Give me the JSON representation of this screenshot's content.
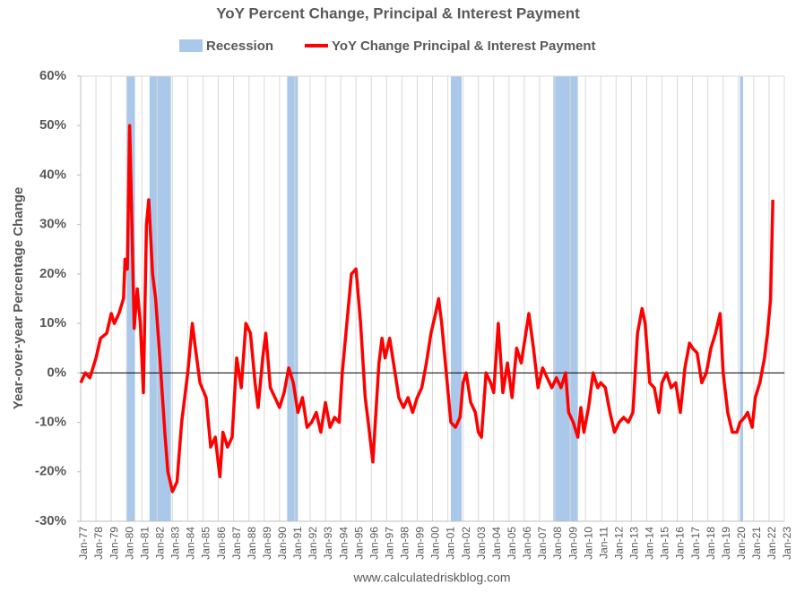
{
  "chart_data": {
    "type": "line",
    "title": "YoY Percent Change, Principal & Interest Payment",
    "ylabel": "Year-over-year Percentage Change",
    "source": "www.calculatedriskblog.com",
    "recession_name": "Recession",
    "recession_color": "#a9c8ea",
    "recessions": [
      {
        "start": 1980.0,
        "end": 1980.55
      },
      {
        "start": 1981.5,
        "end": 1982.9
      },
      {
        "start": 1990.5,
        "end": 1991.2
      },
      {
        "start": 2001.2,
        "end": 2001.9
      },
      {
        "start": 2007.9,
        "end": 2009.5
      },
      {
        "start": 2020.1,
        "end": 2020.3
      }
    ],
    "xlim": [
      1977,
      2023
    ],
    "xticks": [
      {
        "value": 1977,
        "label": "Jan-77"
      },
      {
        "value": 1978,
        "label": "Jan-78"
      },
      {
        "value": 1979,
        "label": "Jan-79"
      },
      {
        "value": 1980,
        "label": "Jan-80"
      },
      {
        "value": 1981,
        "label": "Jan-81"
      },
      {
        "value": 1982,
        "label": "Jan-82"
      },
      {
        "value": 1983,
        "label": "Jan-83"
      },
      {
        "value": 1984,
        "label": "Jan-84"
      },
      {
        "value": 1985,
        "label": "Jan-85"
      },
      {
        "value": 1986,
        "label": "Jan-86"
      },
      {
        "value": 1987,
        "label": "Jan-87"
      },
      {
        "value": 1988,
        "label": "Jan-88"
      },
      {
        "value": 1989,
        "label": "Jan-89"
      },
      {
        "value": 1990,
        "label": "Jan-90"
      },
      {
        "value": 1991,
        "label": "Jan-91"
      },
      {
        "value": 1992,
        "label": "Jan-92"
      },
      {
        "value": 1993,
        "label": "Jan-93"
      },
      {
        "value": 1994,
        "label": "Jan-94"
      },
      {
        "value": 1995,
        "label": "Jan-95"
      },
      {
        "value": 1996,
        "label": "Jan-96"
      },
      {
        "value": 1997,
        "label": "Jan-97"
      },
      {
        "value": 1998,
        "label": "Jan-98"
      },
      {
        "value": 1999,
        "label": "Jan-99"
      },
      {
        "value": 2000,
        "label": "Jan-00"
      },
      {
        "value": 2001,
        "label": "Jan-01"
      },
      {
        "value": 2002,
        "label": "Jan-02"
      },
      {
        "value": 2003,
        "label": "Jan-03"
      },
      {
        "value": 2004,
        "label": "Jan-04"
      },
      {
        "value": 2005,
        "label": "Jan-05"
      },
      {
        "value": 2006,
        "label": "Jan-06"
      },
      {
        "value": 2007,
        "label": "Jan-07"
      },
      {
        "value": 2008,
        "label": "Jan-08"
      },
      {
        "value": 2009,
        "label": "Jan-09"
      },
      {
        "value": 2010,
        "label": "Jan-10"
      },
      {
        "value": 2011,
        "label": "Jan-11"
      },
      {
        "value": 2012,
        "label": "Jan-12"
      },
      {
        "value": 2013,
        "label": "Jan-13"
      },
      {
        "value": 2014,
        "label": "Jan-14"
      },
      {
        "value": 2015,
        "label": "Jan-15"
      },
      {
        "value": 2016,
        "label": "Jan-16"
      },
      {
        "value": 2017,
        "label": "Jan-17"
      },
      {
        "value": 2018,
        "label": "Jan-18"
      },
      {
        "value": 2019,
        "label": "Jan-19"
      },
      {
        "value": 2020,
        "label": "Jan-20"
      },
      {
        "value": 2021,
        "label": "Jan-21"
      },
      {
        "value": 2022,
        "label": "Jan-22"
      },
      {
        "value": 2023,
        "label": "Jan-23"
      }
    ],
    "ylim": [
      -30,
      60
    ],
    "yticks": [
      {
        "value": -30,
        "label": "-30%"
      },
      {
        "value": -20,
        "label": "-20%"
      },
      {
        "value": -10,
        "label": "-10%"
      },
      {
        "value": 0,
        "label": "0%"
      },
      {
        "value": 10,
        "label": "10%"
      },
      {
        "value": 20,
        "label": "20%"
      },
      {
        "value": 30,
        "label": "30%"
      },
      {
        "value": 40,
        "label": "40%"
      },
      {
        "value": 50,
        "label": "50%"
      },
      {
        "value": 60,
        "label": "60%"
      }
    ],
    "grid": true,
    "series": [
      {
        "name": "YoY Change Principal & Interest Payment",
        "color": "#ff0000",
        "x": [
          1977.0,
          1977.3,
          1977.6,
          1978.0,
          1978.3,
          1978.7,
          1979.0,
          1979.2,
          1979.5,
          1979.8,
          1979.9,
          1980.05,
          1980.2,
          1980.35,
          1980.5,
          1980.7,
          1980.9,
          1981.1,
          1981.3,
          1981.45,
          1981.7,
          1981.9,
          1982.2,
          1982.5,
          1982.7,
          1983.0,
          1983.3,
          1983.6,
          1984.0,
          1984.3,
          1984.5,
          1984.8,
          1985.2,
          1985.5,
          1985.8,
          1986.1,
          1986.3,
          1986.6,
          1986.9,
          1987.2,
          1987.5,
          1987.8,
          1988.1,
          1988.4,
          1988.6,
          1988.9,
          1989.1,
          1989.4,
          1989.7,
          1990.0,
          1990.3,
          1990.6,
          1990.9,
          1991.2,
          1991.5,
          1991.8,
          1992.1,
          1992.4,
          1992.7,
          1993.0,
          1993.3,
          1993.6,
          1993.9,
          1994.1,
          1994.4,
          1994.7,
          1995.0,
          1995.3,
          1995.6,
          1995.8,
          1996.1,
          1996.3,
          1996.5,
          1996.7,
          1996.9,
          1997.2,
          1997.5,
          1997.8,
          1998.1,
          1998.4,
          1998.7,
          1999.0,
          1999.3,
          1999.6,
          1999.9,
          2000.2,
          2000.4,
          2000.6,
          2000.9,
          2001.2,
          2001.5,
          2001.8,
          2002.0,
          2002.2,
          2002.5,
          2002.8,
          2003.0,
          2003.2,
          2003.5,
          2003.8,
          2004.0,
          2004.3,
          2004.6,
          2004.9,
          2005.2,
          2005.5,
          2005.8,
          2006.0,
          2006.3,
          2006.6,
          2006.9,
          2007.2,
          2007.5,
          2007.8,
          2008.1,
          2008.4,
          2008.7,
          2008.9,
          2009.2,
          2009.5,
          2009.7,
          2009.9,
          2010.2,
          2010.5,
          2010.8,
          2011.0,
          2011.3,
          2011.6,
          2011.9,
          2012.2,
          2012.5,
          2012.8,
          2013.1,
          2013.4,
          2013.7,
          2013.9,
          2014.2,
          2014.5,
          2014.8,
          2015.0,
          2015.3,
          2015.6,
          2015.9,
          2016.2,
          2016.5,
          2016.8,
          2017.0,
          2017.3,
          2017.6,
          2017.9,
          2018.2,
          2018.5,
          2018.8,
          2019.0,
          2019.3,
          2019.6,
          2019.9,
          2020.1,
          2020.4,
          2020.6,
          2020.9,
          2021.1,
          2021.4,
          2021.7,
          2021.9,
          2022.1,
          2022.25
        ],
        "values": [
          -2,
          0,
          -1,
          3,
          7,
          8,
          12,
          10,
          12,
          15,
          23,
          21,
          50,
          30,
          9,
          17,
          10,
          -4,
          30,
          35,
          20,
          15,
          2,
          -12,
          -20,
          -24,
          -22,
          -10,
          0,
          10,
          5,
          -2,
          -5,
          -15,
          -13,
          -21,
          -12,
          -15,
          -13,
          3,
          -3,
          10,
          8,
          -2,
          -7,
          3,
          8,
          -3,
          -5,
          -7,
          -4,
          1,
          -2,
          -8,
          -5,
          -11,
          -10,
          -8,
          -12,
          -6,
          -11,
          -9,
          -10,
          0,
          10,
          20,
          21,
          10,
          -5,
          -10,
          -18,
          -8,
          2,
          7,
          3,
          7,
          1,
          -5,
          -7,
          -5,
          -8,
          -5,
          -3,
          2,
          8,
          12,
          15,
          10,
          0,
          -10,
          -11,
          -9,
          -2,
          0,
          -6,
          -8,
          -12,
          -13,
          0,
          -2,
          -4,
          10,
          -4,
          2,
          -5,
          5,
          2,
          6,
          12,
          5,
          -3,
          1,
          -1,
          -3,
          -1,
          -3,
          0,
          -8,
          -10,
          -13,
          -7,
          -12,
          -7,
          0,
          -3,
          -2,
          -3,
          -8,
          -12,
          -10,
          -9,
          -10,
          -8,
          8,
          13,
          10,
          -2,
          -3,
          -8,
          -2,
          0,
          -3,
          -2,
          -8,
          1,
          6,
          5,
          4,
          -2,
          0,
          5,
          8,
          12,
          0,
          -8,
          -12,
          -12,
          -10,
          -9,
          -8,
          -11,
          -5,
          -2,
          3,
          8,
          15,
          35
        ]
      }
    ]
  }
}
